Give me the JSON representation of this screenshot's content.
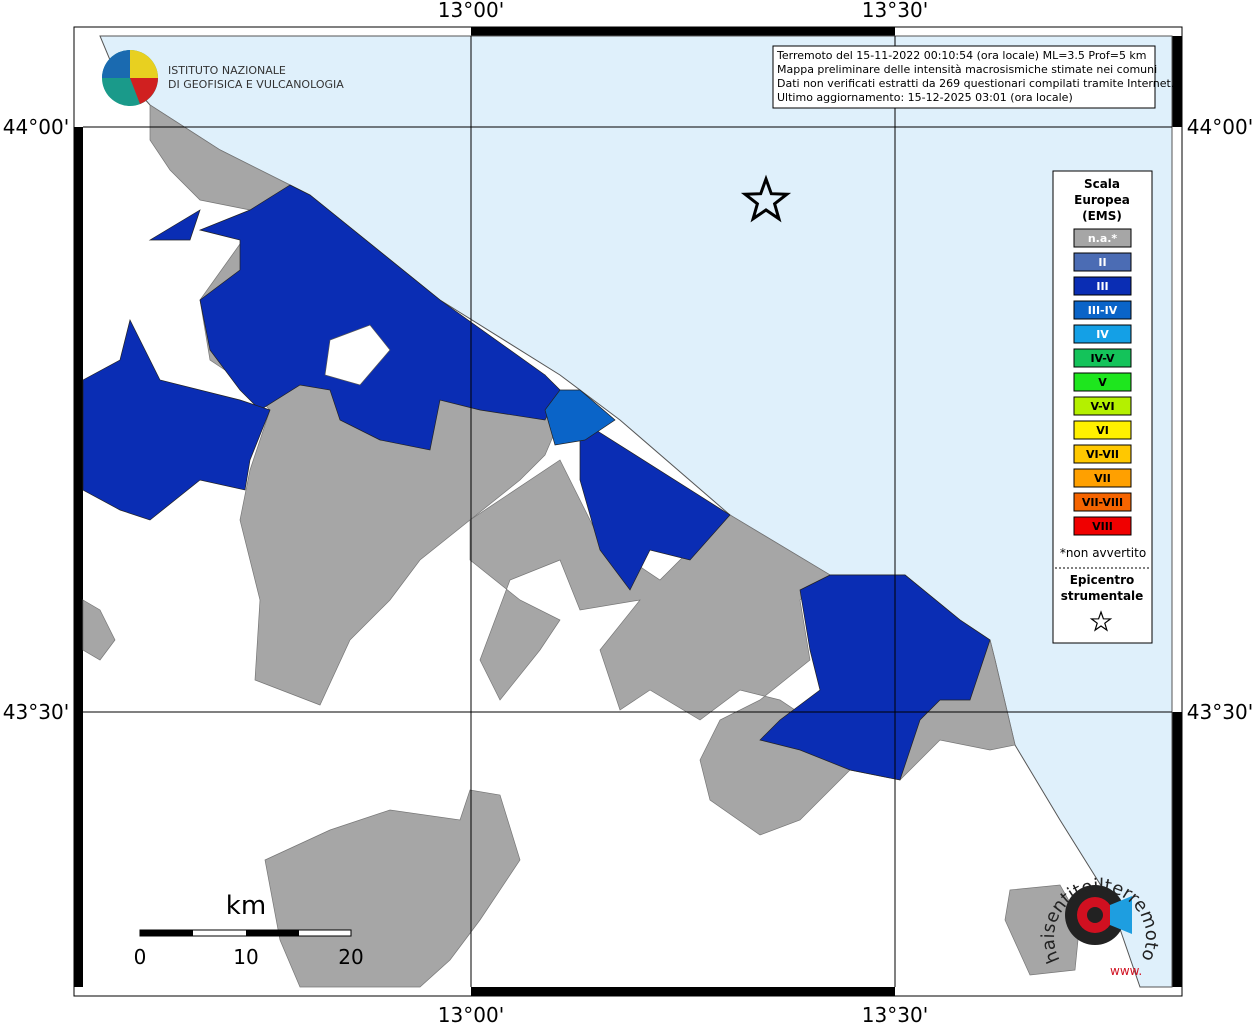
{
  "map": {
    "axis_labels": {
      "lon_left": "13°00'",
      "lon_right": "13°30'",
      "lat_top": "44°00'",
      "lat_bottom": "43°30'"
    },
    "logo": {
      "line1": "ISTITUTO NAZIONALE",
      "line2": "DI GEOFISICA E VULCANOLOGIA"
    },
    "info": [
      "Terremoto del 15-11-2022 00:10:54 (ora locale) ML=3.5 Prof=5 km",
      "Mappa preliminare delle intensità macrosismiche stimate nei comuni",
      "Dati non verificati estratti da 269 questionari compilati tramite Internet.",
      "Ultimo aggiornamento: 15-12-2025 03:01 (ora locale)"
    ],
    "legend": {
      "title": [
        "Scala",
        "Europea",
        "(EMS)"
      ],
      "items": [
        {
          "label": "n.a.*",
          "color": "#a6a6a6",
          "text_color": "#ffffff"
        },
        {
          "label": "II",
          "color": "#4b6cb4",
          "text_color": "#ffffff"
        },
        {
          "label": "III",
          "color": "#0a2db4",
          "text_color": "#ffffff"
        },
        {
          "label": "III-IV",
          "color": "#0a64c8",
          "text_color": "#ffffff"
        },
        {
          "label": "IV",
          "color": "#14a0e6",
          "text_color": "#ffffff"
        },
        {
          "label": "IV-V",
          "color": "#14c35a",
          "text_color": "#000000"
        },
        {
          "label": "V",
          "color": "#1ee61e",
          "text_color": "#000000"
        },
        {
          "label": "V-VI",
          "color": "#b4f000",
          "text_color": "#000000"
        },
        {
          "label": "VI",
          "color": "#fff000",
          "text_color": "#000000"
        },
        {
          "label": "VI-VII",
          "color": "#ffc800",
          "text_color": "#000000"
        },
        {
          "label": "VII",
          "color": "#ffa000",
          "text_color": "#000000"
        },
        {
          "label": "VII-VIII",
          "color": "#f56400",
          "text_color": "#000000"
        },
        {
          "label": "VIII",
          "color": "#f00000",
          "text_color": "#000000"
        }
      ],
      "note": "*non avvertito",
      "epicenter": [
        "Epicentro",
        "strumentale"
      ]
    },
    "scale_bar": {
      "unit": "km",
      "labels": [
        "0",
        "10",
        "20"
      ]
    },
    "site_logo": {
      "text": "haisentitoilterremoto.it",
      "prefix": "www."
    }
  }
}
